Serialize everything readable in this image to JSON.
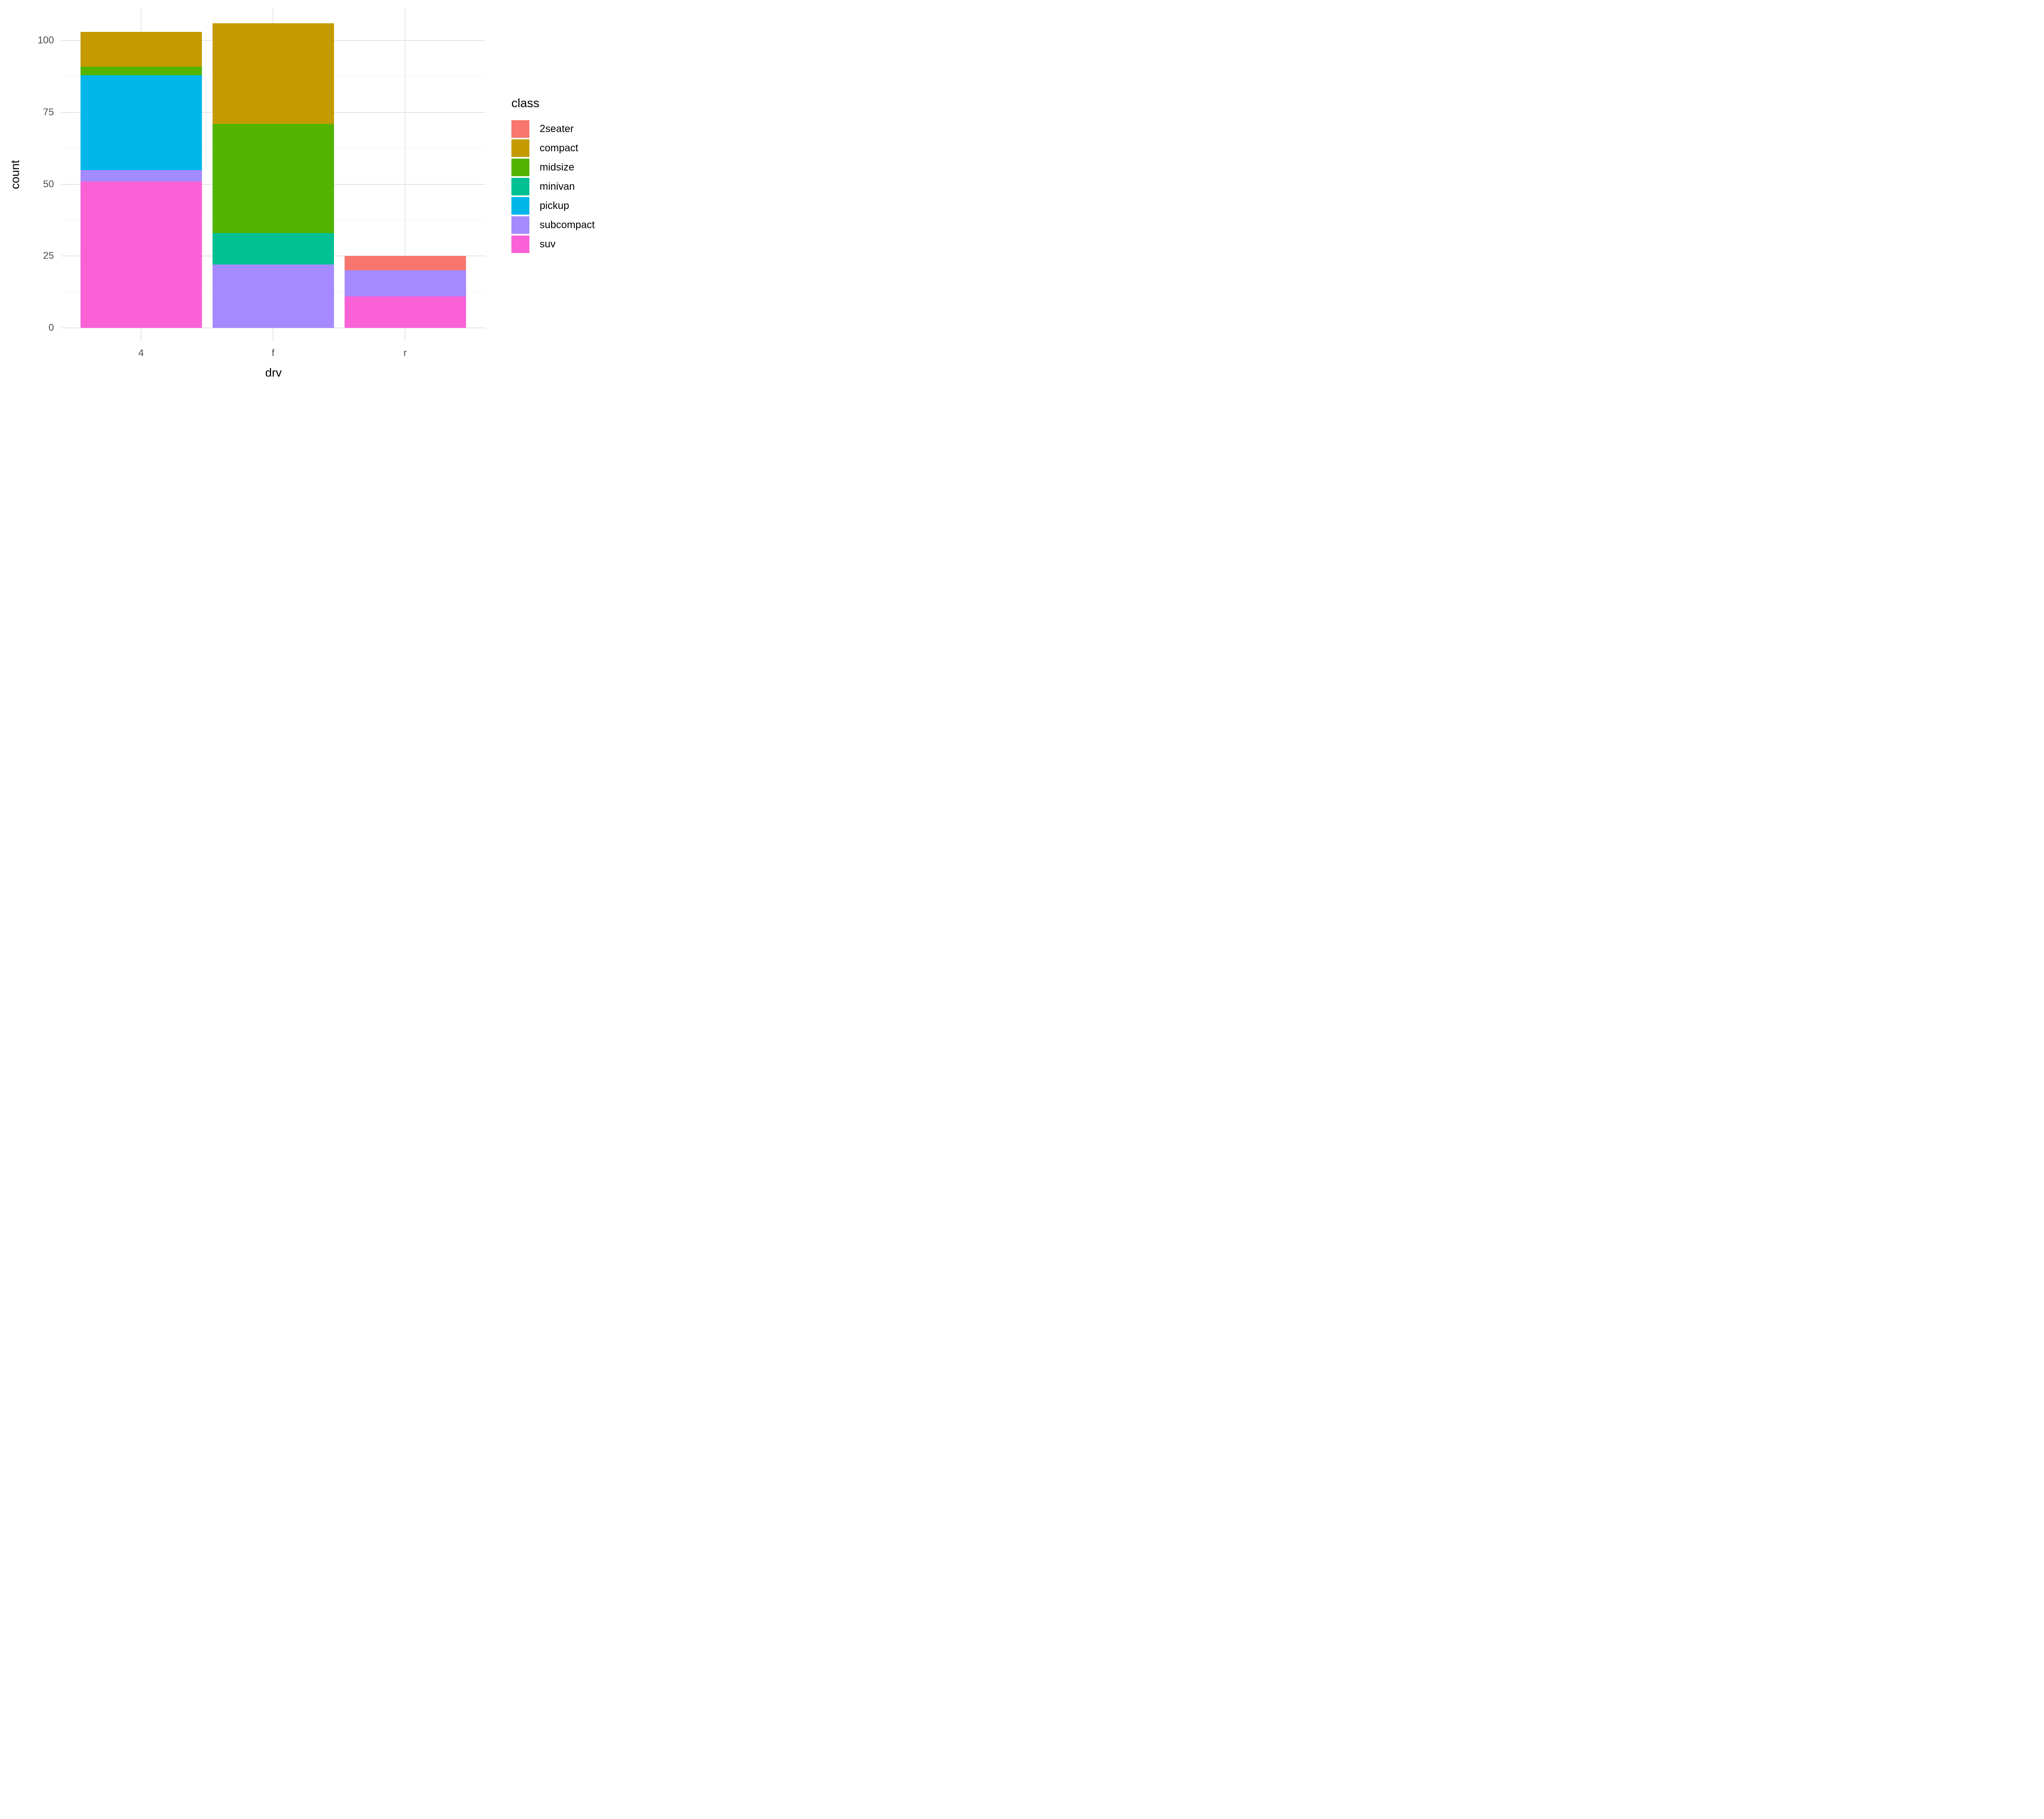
{
  "chart_data": {
    "type": "bar",
    "stacked": true,
    "title": "",
    "xlabel": "drv",
    "ylabel": "count",
    "categories": [
      "4",
      "f",
      "r"
    ],
    "series": [
      {
        "name": "2seater",
        "color": "#F8766D",
        "values": [
          0,
          0,
          5
        ]
      },
      {
        "name": "compact",
        "color": "#C49A00",
        "values": [
          12,
          35,
          0
        ]
      },
      {
        "name": "midsize",
        "color": "#53B400",
        "values": [
          3,
          38,
          0
        ]
      },
      {
        "name": "minivan",
        "color": "#00C094",
        "values": [
          0,
          11,
          0
        ]
      },
      {
        "name": "pickup",
        "color": "#00B6EB",
        "values": [
          33,
          0,
          0
        ]
      },
      {
        "name": "subcompact",
        "color": "#A58AFF",
        "values": [
          4,
          22,
          9
        ]
      },
      {
        "name": "suv",
        "color": "#FB61D7",
        "values": [
          51,
          0,
          11
        ]
      }
    ],
    "totals": [
      103,
      106,
      25
    ],
    "y_ticks": [
      0,
      25,
      50,
      75,
      100
    ],
    "y_minor_ticks": [
      12.5,
      37.5,
      62.5,
      87.5
    ],
    "ylim": [
      0,
      111.3
    ],
    "grid": "on",
    "legend_title": "class",
    "legend_position": "right",
    "background_color": "#FFFFFF",
    "gridline_color": "#EBEBEB",
    "tick_label_color": "#4D4D4D"
  }
}
